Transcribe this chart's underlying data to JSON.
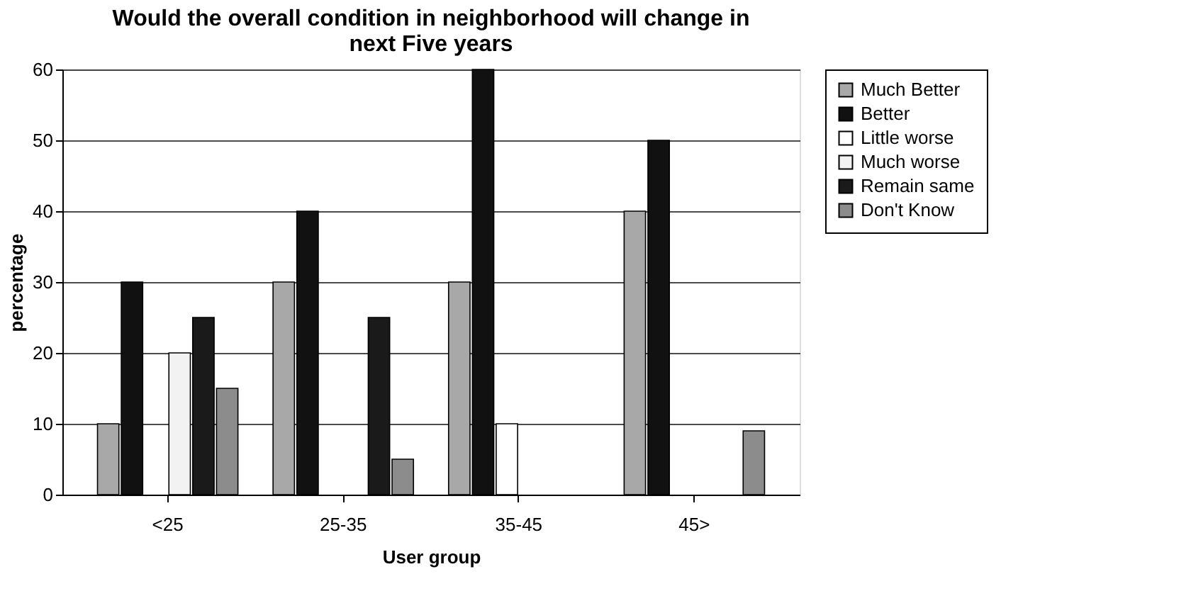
{
  "chart_data": {
    "type": "bar",
    "title": [
      "Would the overall condition in neighborhood will change in",
      "next Five years"
    ],
    "xlabel": "User group",
    "ylabel": "percentage",
    "categories": [
      "<25",
      "25-35",
      "35-45",
      "45>"
    ],
    "series": [
      {
        "name": "Much Better",
        "color": "#a8a8a8",
        "values": [
          10,
          30,
          30,
          40
        ]
      },
      {
        "name": "Better",
        "color": "#111111",
        "values": [
          30,
          40,
          60,
          50
        ]
      },
      {
        "name": "Little worse",
        "color": "#ffffff",
        "values": [
          0,
          0,
          10,
          0
        ]
      },
      {
        "name": "Much worse",
        "color": "#f2f2f2",
        "values": [
          20,
          0,
          0,
          0
        ]
      },
      {
        "name": "Remain same",
        "color": "#1a1a1a",
        "values": [
          25,
          25,
          0,
          0
        ]
      },
      {
        "name": "Don't Know",
        "color": "#8c8c8c",
        "values": [
          15,
          5,
          0,
          9
        ]
      }
    ],
    "ylim": [
      0,
      60
    ],
    "yticks": [
      0,
      10,
      20,
      30,
      40,
      50,
      60
    ],
    "grid": "y",
    "legend": "right"
  }
}
